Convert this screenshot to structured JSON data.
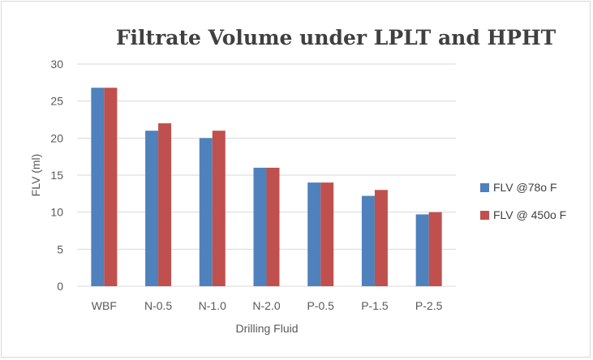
{
  "chart_data": {
    "type": "bar",
    "title": "Filtrate Volume under LPLT and HPHT",
    "xlabel": "Drilling Fluid",
    "ylabel": "FLV  (ml)",
    "ylim": [
      0,
      30
    ],
    "yticks": [
      0,
      5,
      10,
      15,
      20,
      25,
      30
    ],
    "grid": true,
    "legend_position": "right",
    "categories": [
      "WBF",
      "N-0.5",
      "N-1.0",
      "N-2.0",
      "P-0.5",
      "P-1.5",
      "P-2.5"
    ],
    "series": [
      {
        "name": "FLV @78o F",
        "color": "#4f81bd",
        "values": [
          26.8,
          21.0,
          20.0,
          16.0,
          14.0,
          12.2,
          9.7
        ]
      },
      {
        "name": "FLV @ 450o F",
        "color": "#c0504d",
        "values": [
          26.8,
          22.0,
          21.0,
          16.0,
          14.0,
          13.0,
          10.0
        ]
      }
    ]
  }
}
